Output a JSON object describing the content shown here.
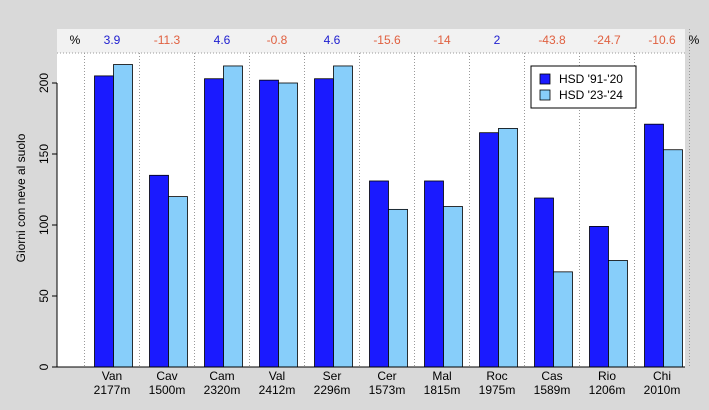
{
  "chart_data": {
    "type": "bar",
    "ylabel": "Giorni con neve al suolo",
    "ylim": [
      0,
      220
    ],
    "yticks": [
      0,
      50,
      100,
      150,
      200
    ],
    "percent_symbol": "%",
    "categories": [
      {
        "name": "Van",
        "elevation": "2177m"
      },
      {
        "name": "Cav",
        "elevation": "1500m"
      },
      {
        "name": "Cam",
        "elevation": "2320m"
      },
      {
        "name": "Val",
        "elevation": "2412m"
      },
      {
        "name": "Ser",
        "elevation": "2296m"
      },
      {
        "name": "Cer",
        "elevation": "1573m"
      },
      {
        "name": "Mal",
        "elevation": "1815m"
      },
      {
        "name": "Roc",
        "elevation": "1975m"
      },
      {
        "name": "Cas",
        "elevation": "1589m"
      },
      {
        "name": "Rio",
        "elevation": "1206m"
      },
      {
        "name": "Chi",
        "elevation": "2010m"
      }
    ],
    "series": [
      {
        "name": "HSD '91-'20",
        "color": "#1a1aff",
        "values": [
          205,
          135,
          203,
          202,
          203,
          131,
          131,
          165,
          119,
          99,
          171
        ]
      },
      {
        "name": "HSD '23-'24",
        "color": "#87cefa",
        "values": [
          213,
          120,
          212,
          200,
          212,
          111,
          113,
          168,
          67,
          75,
          153
        ]
      }
    ],
    "percent_changes": [
      3.9,
      -11.3,
      4.6,
      -0.8,
      4.6,
      -15.6,
      -14,
      2,
      -43.8,
      -24.7,
      -10.6
    ],
    "percent_colors": {
      "positive": "#2020d0",
      "negative": "#e06040"
    },
    "grid": "vertical-dotted",
    "legend": "top-right"
  }
}
